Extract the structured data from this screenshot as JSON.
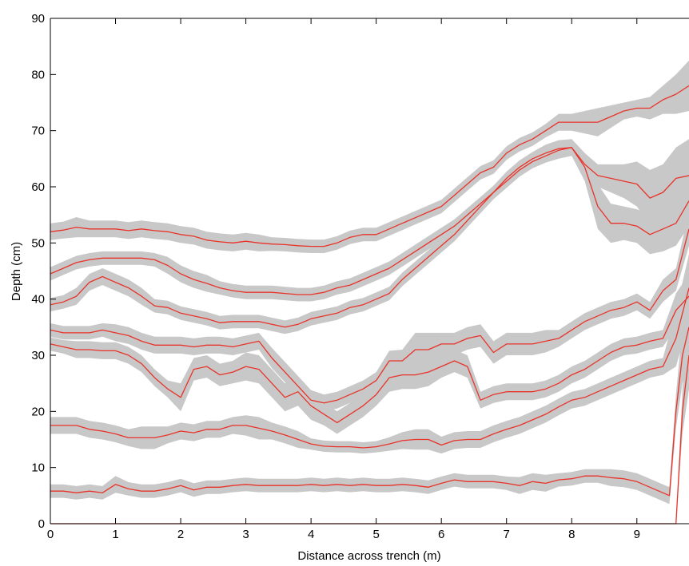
{
  "chart_data": {
    "type": "line",
    "xlabel": "Distance across trench (m)",
    "ylabel": "Depth (cm)",
    "xlim": [
      0,
      9.8
    ],
    "ylim": [
      0,
      90
    ],
    "xticks": [
      0,
      1,
      2,
      3,
      4,
      5,
      6,
      7,
      8,
      9
    ],
    "yticks": [
      0,
      10,
      20,
      30,
      40,
      50,
      60,
      70,
      80,
      90
    ],
    "grid": false,
    "line_color": "#e8332a",
    "band_color": "#c8c8c8",
    "series": [
      {
        "x": [
          0,
          0.2,
          0.4,
          0.6,
          0.8,
          1.0,
          1.2,
          1.4,
          1.6,
          1.8,
          2.0,
          2.2,
          2.4,
          2.6,
          2.8,
          3.0,
          3.2,
          3.4,
          3.6,
          3.8,
          4.0,
          4.2,
          4.4,
          4.6,
          4.8,
          5.0,
          5.2,
          5.4,
          5.6,
          5.8,
          6.0,
          6.2,
          6.4,
          6.6,
          6.8,
          7.0,
          7.2,
          7.4,
          7.6,
          7.8,
          8.0,
          8.2,
          8.4,
          8.6,
          8.8,
          9.0,
          9.2,
          9.4,
          9.6,
          9.8
        ],
        "y": [
          52,
          52.3,
          52.8,
          52.5,
          52.5,
          52.5,
          52.2,
          52.5,
          52.2,
          52.0,
          51.5,
          51.2,
          50.5,
          50.2,
          50.0,
          50.3,
          50.0,
          49.8,
          49.7,
          49.5,
          49.4,
          49.4,
          50.0,
          51.0,
          51.5,
          51.5,
          52.5,
          53.5,
          54.5,
          55.5,
          56.5,
          58.5,
          60.5,
          62.5,
          63.5,
          66.0,
          67.5,
          68.5,
          70.0,
          71.5,
          71.5,
          71.5,
          71.5,
          72.5,
          73.5,
          74.0,
          74.0,
          75.5,
          76.5,
          78.0
        ],
        "spread": [
          1.5,
          1.5,
          1.8,
          1.5,
          1.5,
          1.5,
          1.5,
          1.5,
          1.5,
          1.5,
          1.5,
          1.5,
          1.5,
          1.5,
          1.5,
          1.5,
          1.5,
          1.2,
          1.2,
          1.2,
          1.2,
          1.2,
          1.2,
          1.2,
          1.2,
          1.2,
          1.2,
          1.2,
          1.2,
          1.2,
          1.2,
          1.2,
          1.2,
          1.2,
          1.2,
          1.2,
          1.2,
          1.2,
          1.2,
          1.5,
          1.5,
          2.0,
          2.5,
          2.0,
          1.5,
          1.5,
          2.0,
          2.5,
          3.5,
          4.5
        ]
      },
      {
        "x": [
          0,
          0.2,
          0.4,
          0.6,
          0.8,
          1.0,
          1.2,
          1.4,
          1.6,
          1.8,
          2.0,
          2.2,
          2.4,
          2.6,
          2.8,
          3.0,
          3.2,
          3.4,
          3.6,
          3.8,
          4.0,
          4.2,
          4.4,
          4.6,
          4.8,
          5.0,
          5.2,
          5.4,
          5.6,
          5.8,
          6.0,
          6.2,
          6.4,
          6.6,
          6.8,
          7.0,
          7.2,
          7.4,
          7.6,
          7.8,
          8.0,
          8.2,
          8.4,
          8.6,
          8.8,
          9.0,
          9.2,
          9.4,
          9.6,
          9.8
        ],
        "y": [
          44.5,
          45.5,
          46.5,
          47.0,
          47.3,
          47.3,
          47.3,
          47.3,
          47.0,
          46.0,
          44.5,
          43.5,
          42.8,
          42.0,
          41.5,
          41.2,
          41.2,
          41.2,
          41.0,
          40.8,
          40.8,
          41.2,
          42.0,
          42.5,
          43.5,
          44.5,
          45.5,
          47.0,
          48.5,
          50.0,
          51.5,
          53.0,
          55.0,
          57.0,
          59.0,
          61.0,
          63.0,
          64.5,
          65.5,
          66.5,
          67.0,
          64.0,
          62.0,
          61.5,
          61.0,
          60.5,
          58.0,
          59.0,
          61.5,
          62.0
        ],
        "spread": [
          1.2,
          1.2,
          1.2,
          1.2,
          1.2,
          1.2,
          1.2,
          1.2,
          1.2,
          1.5,
          1.5,
          1.5,
          1.5,
          1.2,
          1.2,
          1.2,
          1.2,
          1.2,
          1.2,
          1.2,
          1.2,
          1.2,
          1.2,
          1.2,
          1.2,
          1.2,
          1.2,
          1.2,
          1.2,
          1.2,
          1.2,
          1.2,
          1.2,
          1.2,
          1.2,
          1.2,
          1.2,
          1.2,
          1.2,
          1.5,
          1.5,
          2.0,
          2.0,
          2.5,
          3.0,
          4.0,
          5.0,
          5.0,
          5.5,
          6.5
        ]
      },
      {
        "x": [
          0,
          0.2,
          0.4,
          0.6,
          0.8,
          1.0,
          1.2,
          1.4,
          1.6,
          1.8,
          2.0,
          2.2,
          2.4,
          2.6,
          2.8,
          3.0,
          3.2,
          3.4,
          3.6,
          3.8,
          4.0,
          4.2,
          4.4,
          4.6,
          4.8,
          5.0,
          5.2,
          5.4,
          5.6,
          5.8,
          6.0,
          6.2,
          6.4,
          6.6,
          6.8,
          7.0,
          7.2,
          7.4,
          7.6,
          7.8,
          8.0,
          8.2,
          8.4,
          8.6,
          8.8,
          9.0,
          9.2,
          9.4,
          9.6,
          9.8
        ],
        "y": [
          39.0,
          39.5,
          40.5,
          43.0,
          44.0,
          43.0,
          42.0,
          40.5,
          38.8,
          38.5,
          37.5,
          37.0,
          36.5,
          35.8,
          36.0,
          36.0,
          36.0,
          35.5,
          35.0,
          35.5,
          36.5,
          37.0,
          37.5,
          38.5,
          39.0,
          40.0,
          41.0,
          43.5,
          45.5,
          47.5,
          49.5,
          51.5,
          54.0,
          56.5,
          59.0,
          61.5,
          63.5,
          65.0,
          66.0,
          66.8,
          67.0,
          63.5,
          56.5,
          53.5,
          53.5,
          53.0,
          51.5,
          52.5,
          53.5,
          57.5
        ],
        "spread": [
          1.2,
          1.2,
          1.5,
          1.5,
          1.5,
          1.5,
          1.5,
          1.5,
          1.2,
          1.2,
          1.2,
          1.2,
          1.2,
          1.2,
          1.2,
          1.2,
          1.2,
          1.2,
          1.2,
          1.2,
          1.2,
          1.2,
          1.2,
          1.2,
          1.2,
          1.2,
          1.2,
          1.2,
          1.2,
          1.2,
          1.2,
          1.2,
          1.2,
          1.2,
          1.2,
          1.2,
          1.2,
          1.2,
          1.5,
          1.5,
          1.5,
          2.5,
          4.0,
          3.5,
          3.0,
          3.0,
          3.5,
          4.0,
          4.0,
          4.5
        ]
      },
      {
        "x": [
          0,
          0.2,
          0.4,
          0.6,
          0.8,
          1.0,
          1.2,
          1.4,
          1.6,
          1.8,
          2.0,
          2.2,
          2.4,
          2.6,
          2.8,
          3.0,
          3.2,
          3.4,
          3.6,
          3.8,
          4.0,
          4.2,
          4.4,
          4.6,
          4.8,
          5.0,
          5.2,
          5.4,
          5.6,
          5.8,
          6.0,
          6.2,
          6.4,
          6.6,
          6.8,
          7.0,
          7.2,
          7.4,
          7.6,
          7.8,
          8.0,
          8.2,
          8.4,
          8.6,
          8.8,
          9.0,
          9.2,
          9.4,
          9.6,
          9.8
        ],
        "y": [
          34.5,
          34.0,
          34.0,
          34.0,
          34.5,
          34.0,
          33.5,
          32.5,
          31.8,
          31.8,
          31.8,
          31.5,
          31.8,
          31.8,
          31.5,
          32.0,
          32.5,
          29.5,
          27.0,
          24.5,
          22.0,
          21.5,
          22.0,
          23.0,
          24.0,
          25.5,
          29.0,
          29.0,
          31.0,
          31.0,
          32.0,
          32.0,
          33.0,
          33.5,
          30.5,
          32.0,
          32.0,
          32.0,
          32.5,
          33.0,
          34.5,
          36.0,
          37.0,
          38.0,
          38.5,
          39.5,
          38.0,
          41.5,
          43.5,
          52.5
        ],
        "spread": [
          1.2,
          1.2,
          1.2,
          1.2,
          1.2,
          1.5,
          1.5,
          1.5,
          1.5,
          1.5,
          1.5,
          1.5,
          1.5,
          1.5,
          1.5,
          1.5,
          1.5,
          1.8,
          1.8,
          1.8,
          1.8,
          1.5,
          1.5,
          1.5,
          1.5,
          1.5,
          1.8,
          2.0,
          3.0,
          3.0,
          2.0,
          2.0,
          2.0,
          2.0,
          2.0,
          2.0,
          2.0,
          2.0,
          2.0,
          1.5,
          1.5,
          1.5,
          1.5,
          1.5,
          1.5,
          1.5,
          1.5,
          2.0,
          2.0,
          3.0
        ]
      },
      {
        "x": [
          0,
          0.2,
          0.4,
          0.6,
          0.8,
          1.0,
          1.2,
          1.4,
          1.6,
          1.8,
          2.0,
          2.2,
          2.4,
          2.6,
          2.8,
          3.0,
          3.2,
          3.4,
          3.6,
          3.8,
          4.0,
          4.2,
          4.4,
          4.6,
          4.8,
          5.0,
          5.2,
          5.4,
          5.6,
          5.8,
          6.0,
          6.2,
          6.4,
          6.6,
          6.8,
          7.0,
          7.2,
          7.4,
          7.6,
          7.8,
          8.0,
          8.2,
          8.4,
          8.6,
          8.8,
          9.0,
          9.2,
          9.4,
          9.6,
          9.8
        ],
        "y": [
          32.0,
          31.5,
          31.0,
          31.0,
          30.8,
          30.8,
          30.0,
          28.5,
          26.0,
          24.0,
          22.5,
          27.5,
          28.0,
          26.5,
          27.0,
          28.0,
          27.5,
          25.0,
          22.5,
          23.5,
          21.0,
          19.5,
          18.0,
          19.5,
          21.0,
          23.0,
          26.0,
          26.5,
          26.5,
          27.0,
          28.0,
          29.0,
          28.0,
          22.0,
          23.0,
          23.5,
          23.5,
          23.5,
          24.0,
          25.0,
          26.5,
          27.5,
          29.0,
          30.5,
          31.5,
          31.8,
          32.5,
          33.0,
          38.0,
          40.5
        ],
        "spread": [
          1.2,
          1.2,
          1.5,
          1.5,
          1.5,
          1.5,
          1.5,
          1.5,
          1.5,
          1.5,
          2.5,
          2.0,
          2.0,
          2.0,
          2.0,
          2.5,
          2.5,
          2.5,
          2.5,
          2.5,
          2.5,
          2.0,
          2.0,
          2.0,
          2.0,
          2.0,
          2.5,
          2.5,
          2.5,
          2.5,
          2.0,
          2.0,
          2.0,
          1.5,
          1.5,
          1.5,
          1.5,
          1.5,
          1.5,
          1.5,
          1.5,
          1.5,
          1.5,
          1.5,
          1.5,
          1.5,
          1.5,
          1.5,
          3.0,
          4.0
        ]
      },
      {
        "x": [
          0,
          0.2,
          0.4,
          0.6,
          0.8,
          1.0,
          1.2,
          1.4,
          1.6,
          1.8,
          2.0,
          2.2,
          2.4,
          2.6,
          2.8,
          3.0,
          3.2,
          3.4,
          3.6,
          3.8,
          4.0,
          4.2,
          4.4,
          4.6,
          4.8,
          5.0,
          5.2,
          5.4,
          5.6,
          5.8,
          6.0,
          6.2,
          6.4,
          6.6,
          6.8,
          7.0,
          7.2,
          7.4,
          7.6,
          7.8,
          8.0,
          8.2,
          8.4,
          8.6,
          8.8,
          9.0,
          9.2,
          9.4,
          9.6,
          9.8
        ],
        "y": [
          17.5,
          17.5,
          17.5,
          16.8,
          16.5,
          16.0,
          15.3,
          15.3,
          15.3,
          15.8,
          16.5,
          16.2,
          16.8,
          16.8,
          17.5,
          17.5,
          17.0,
          16.5,
          15.8,
          15.0,
          14.2,
          13.8,
          13.7,
          13.7,
          13.5,
          13.7,
          14.2,
          14.8,
          15.0,
          15.0,
          14.0,
          14.8,
          15.0,
          15.0,
          16.0,
          16.8,
          17.5,
          18.5,
          19.5,
          20.8,
          22.0,
          22.5,
          23.5,
          24.5,
          25.5,
          26.5,
          27.5,
          28.0,
          33.0,
          42.0
        ],
        "spread": [
          1.5,
          1.5,
          1.5,
          1.5,
          1.5,
          1.5,
          1.5,
          2.0,
          2.0,
          1.5,
          1.5,
          1.5,
          1.5,
          1.5,
          1.5,
          1.8,
          2.0,
          1.5,
          1.5,
          1.5,
          1.0,
          1.0,
          1.0,
          1.0,
          1.0,
          1.0,
          1.2,
          1.5,
          1.8,
          1.8,
          1.5,
          1.5,
          1.5,
          1.5,
          1.5,
          1.5,
          1.5,
          1.5,
          1.5,
          1.5,
          1.5,
          1.5,
          1.5,
          1.5,
          1.5,
          1.5,
          1.5,
          1.5,
          5.0,
          6.0
        ]
      },
      {
        "x": [
          0,
          0.2,
          0.4,
          0.6,
          0.8,
          1.0,
          1.2,
          1.4,
          1.6,
          1.8,
          2.0,
          2.2,
          2.4,
          2.6,
          2.8,
          3.0,
          3.2,
          3.4,
          3.6,
          3.8,
          4.0,
          4.2,
          4.4,
          4.6,
          4.8,
          5.0,
          5.2,
          5.4,
          5.6,
          5.8,
          6.0,
          6.2,
          6.4,
          6.6,
          6.8,
          7.0,
          7.2,
          7.4,
          7.6,
          7.8,
          8.0,
          8.2,
          8.4,
          8.6,
          8.8,
          9.0,
          9.2,
          9.4,
          9.5,
          9.6,
          9.7,
          9.8
        ],
        "y": [
          5.8,
          5.8,
          5.5,
          5.8,
          5.5,
          7.0,
          6.2,
          5.8,
          5.8,
          6.2,
          6.8,
          6.0,
          6.5,
          6.5,
          6.8,
          7.0,
          6.8,
          6.8,
          6.8,
          6.8,
          7.0,
          6.8,
          7.0,
          6.8,
          7.0,
          6.8,
          6.8,
          7.0,
          6.8,
          6.5,
          7.2,
          7.8,
          7.5,
          7.5,
          7.5,
          7.2,
          6.8,
          7.5,
          7.2,
          7.8,
          8.0,
          8.5,
          8.5,
          8.2,
          8.0,
          7.5,
          6.5,
          5.5,
          5.0,
          20.0,
          30.0,
          35.0
        ],
        "spread": [
          1.2,
          1.2,
          1.2,
          1.2,
          1.2,
          1.5,
          1.2,
          1.2,
          1.2,
          1.2,
          1.2,
          1.2,
          1.2,
          1.2,
          1.2,
          1.2,
          1.2,
          1.2,
          1.2,
          1.2,
          1.2,
          1.2,
          1.2,
          1.2,
          1.2,
          1.2,
          1.2,
          1.2,
          1.2,
          1.2,
          1.2,
          1.2,
          1.2,
          1.2,
          1.2,
          1.2,
          1.5,
          1.5,
          1.5,
          1.2,
          1.2,
          1.2,
          1.2,
          1.5,
          1.5,
          1.5,
          1.5,
          1.5,
          1.5,
          3.0,
          5.0,
          6.0
        ]
      },
      {
        "x": [
          0,
          9.6,
          9.7,
          9.8
        ],
        "y": [
          0,
          0,
          20.0,
          30.0
        ],
        "spread": [
          0,
          0,
          4.0,
          6.0
        ]
      }
    ]
  }
}
